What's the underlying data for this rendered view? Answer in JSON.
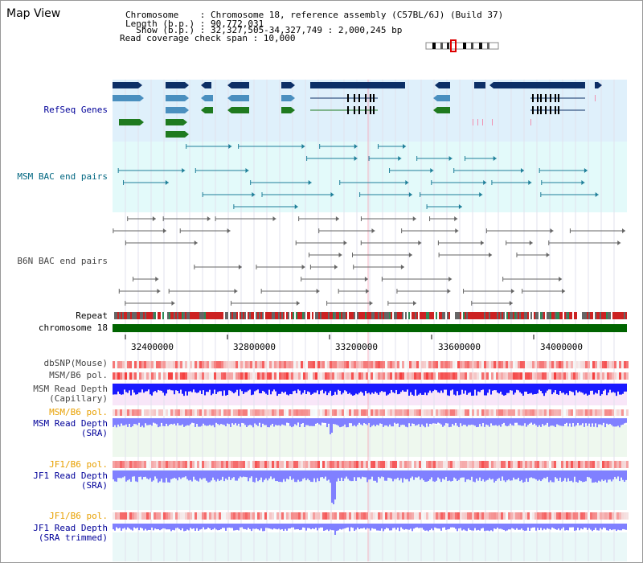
{
  "title": "Map View",
  "header": {
    "line1": "Chromosome    : Chromosome 18, reference assembly (C57BL/6J) (Build 37)",
    "line2": "Length (b.p.) : 90,772,031",
    "line3": "  Show (b.p.) : 32,327,505-34,327,749 : 2,000,245 bp",
    "line4": "Read coverage check span : 10,000"
  },
  "tracks": {
    "refseq": "RefSeq Genes",
    "msm_bac": "MSM BAC end pairs",
    "b6n_bac": "B6N BAC end pairs",
    "repeat": "Repeat",
    "chromosome": "chromosome 18",
    "dbsnp": "dbSNP(Mouse)",
    "msm_b6_pol": "MSM/B6 pol.",
    "msm_depth_cap": "MSM Read Depth\n(Capillary)",
    "msm_b6_pol2": "MSM/B6 pol.",
    "msm_depth_sra": "MSM Read Depth\n(SRA)",
    "jf1_b6_pol": "JF1/B6 pol.",
    "jf1_depth_sra": "JF1 Read Depth\n(SRA)",
    "jf1_b6_pol2": "JF1/B6 pol.",
    "jf1_depth_trim": "JF1 Read Depth\n(SRA trimmed)"
  },
  "axis": {
    "ticks": [
      "32400000",
      "32800000",
      "33200000",
      "33600000",
      "34000000"
    ]
  },
  "colors": {
    "refseq_bg": "#dff0fb",
    "msm_bg": "#e3fafa",
    "gene_dark": "#0d2f66",
    "gene_mid": "#4a8fbf",
    "gene_green": "#1f7a1f",
    "chrom_green": "#006400",
    "depth_blue": "#1a1aff",
    "depth_light": "#8080ff"
  }
}
